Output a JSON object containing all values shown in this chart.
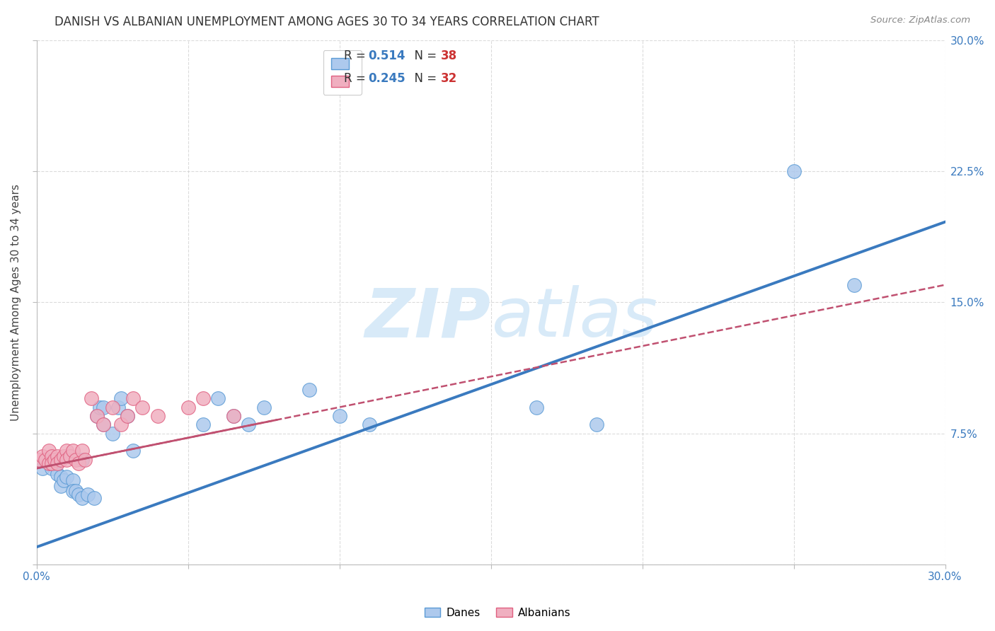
{
  "title": "DANISH VS ALBANIAN UNEMPLOYMENT AMONG AGES 30 TO 34 YEARS CORRELATION CHART",
  "source": "Source: ZipAtlas.com",
  "ylabel": "Unemployment Among Ages 30 to 34 years",
  "xlim": [
    0,
    0.3
  ],
  "ylim": [
    0,
    0.3
  ],
  "xticks": [
    0.0,
    0.05,
    0.1,
    0.15,
    0.2,
    0.25,
    0.3
  ],
  "yticks": [
    0.0,
    0.075,
    0.15,
    0.225,
    0.3
  ],
  "danes_R": "0.514",
  "danes_N": "38",
  "albanians_R": "0.245",
  "albanians_N": "32",
  "danes_color": "#adc9ed",
  "albanians_color": "#f0afc0",
  "danes_edge_color": "#5b9bd5",
  "albanians_edge_color": "#e06080",
  "danes_line_color": "#3a7abf",
  "albanians_line_color": "#c05070",
  "background_color": "#ffffff",
  "grid_color": "#cccccc",
  "watermark_color": "#d8eaf8",
  "danes_x": [
    0.002,
    0.004,
    0.005,
    0.006,
    0.007,
    0.008,
    0.008,
    0.009,
    0.01,
    0.012,
    0.012,
    0.013,
    0.014,
    0.015,
    0.015,
    0.017,
    0.019,
    0.02,
    0.021,
    0.022,
    0.022,
    0.025,
    0.027,
    0.028,
    0.03,
    0.032,
    0.055,
    0.06,
    0.065,
    0.07,
    0.075,
    0.09,
    0.1,
    0.11,
    0.165,
    0.185,
    0.25,
    0.27
  ],
  "danes_y": [
    0.055,
    0.06,
    0.055,
    0.058,
    0.052,
    0.05,
    0.045,
    0.048,
    0.05,
    0.048,
    0.042,
    0.042,
    0.04,
    0.038,
    0.06,
    0.04,
    0.038,
    0.085,
    0.09,
    0.09,
    0.08,
    0.075,
    0.09,
    0.095,
    0.085,
    0.065,
    0.08,
    0.095,
    0.085,
    0.08,
    0.09,
    0.1,
    0.085,
    0.08,
    0.09,
    0.08,
    0.225,
    0.16
  ],
  "albanians_x": [
    0.001,
    0.002,
    0.003,
    0.004,
    0.004,
    0.005,
    0.005,
    0.006,
    0.007,
    0.007,
    0.008,
    0.009,
    0.01,
    0.01,
    0.011,
    0.012,
    0.013,
    0.014,
    0.015,
    0.016,
    0.018,
    0.02,
    0.022,
    0.025,
    0.028,
    0.03,
    0.032,
    0.035,
    0.04,
    0.05,
    0.055,
    0.065
  ],
  "albanians_y": [
    0.06,
    0.062,
    0.06,
    0.058,
    0.065,
    0.062,
    0.058,
    0.06,
    0.062,
    0.058,
    0.06,
    0.062,
    0.065,
    0.06,
    0.062,
    0.065,
    0.06,
    0.058,
    0.065,
    0.06,
    0.095,
    0.085,
    0.08,
    0.09,
    0.08,
    0.085,
    0.095,
    0.09,
    0.085,
    0.09,
    0.095,
    0.085
  ],
  "danes_line_slope": 0.62,
  "danes_line_intercept": 0.01,
  "albanians_line_slope": 0.35,
  "albanians_line_intercept": 0.055
}
